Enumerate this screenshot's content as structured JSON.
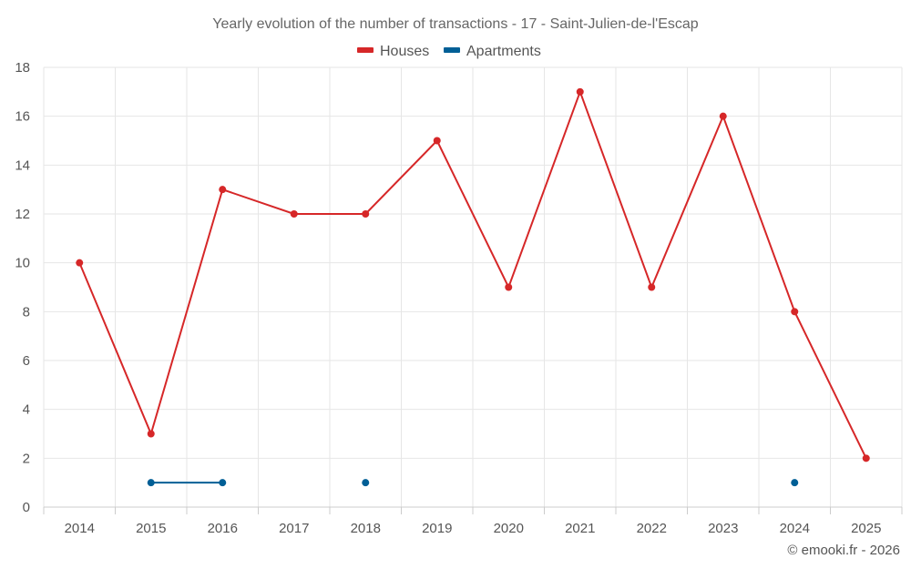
{
  "chart_data": {
    "type": "line",
    "title": "Yearly evolution of the number of transactions - 17 - Saint-Julien-de-l'Escap",
    "categories": [
      "2014",
      "2015",
      "2016",
      "2017",
      "2018",
      "2019",
      "2020",
      "2021",
      "2022",
      "2023",
      "2024",
      "2025"
    ],
    "ylim": [
      0,
      18
    ],
    "yticks": [
      "0",
      "2",
      "4",
      "6",
      "8",
      "10",
      "12",
      "14",
      "16",
      "18"
    ],
    "grid": true,
    "legend_position": "top-center",
    "xlabel": "",
    "ylabel": "",
    "series": [
      {
        "name": "Houses",
        "color": "#d62728",
        "values": [
          10,
          3,
          13,
          12,
          12,
          15,
          9,
          17,
          9,
          16,
          8,
          2
        ]
      },
      {
        "name": "Apartments",
        "color": "#005f96",
        "values": [
          null,
          1,
          1,
          null,
          1,
          null,
          null,
          null,
          null,
          null,
          1,
          null
        ]
      }
    ]
  },
  "credit": "© emooki.fr - 2026"
}
